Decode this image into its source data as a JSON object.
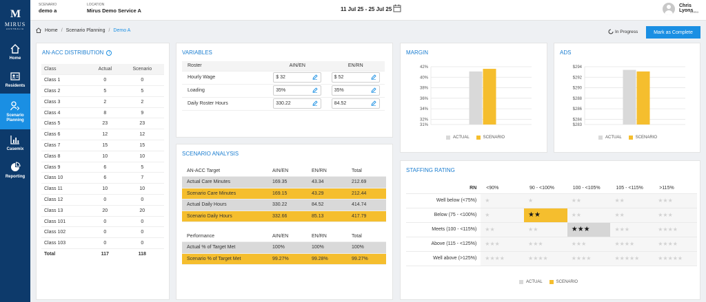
{
  "brand": {
    "mark": "M",
    "name": "MIRUS",
    "sub": "AUSTRALIA"
  },
  "nav": [
    {
      "label": "Home",
      "icon": "home-icon"
    },
    {
      "label": "Residents",
      "icon": "residents-icon"
    },
    {
      "label": "Scenario Planning",
      "icon": "scenario-planning-icon",
      "active": true
    },
    {
      "label": "Casemix",
      "icon": "casemix-icon"
    },
    {
      "label": "Reporting",
      "icon": "reporting-icon"
    }
  ],
  "topbar": {
    "scenario_label": "SCENARIO",
    "scenario_value": "demo a",
    "location_label": "LOCATION",
    "location_value": "Mirus Demo Service A",
    "date_range": "11 Jul 25 - 25 Jul 25",
    "user_name": "Chris Lyons",
    "user_role": "Demo"
  },
  "breadcrumb": {
    "home": "Home",
    "section": "Scenario Planning",
    "current": "Demo A"
  },
  "status": {
    "progress": "In Progress",
    "complete_button": "Mark as Complete"
  },
  "distribution": {
    "title": "AN-ACC DISTRIBUTION",
    "headers": [
      "Class",
      "Actual",
      "Scenario"
    ],
    "rows": [
      [
        "Class 1",
        "0",
        "0"
      ],
      [
        "Class 2",
        "5",
        "5"
      ],
      [
        "Class 3",
        "2",
        "2"
      ],
      [
        "Class 4",
        "8",
        "9"
      ],
      [
        "Class 5",
        "23",
        "23"
      ],
      [
        "Class 6",
        "12",
        "12"
      ],
      [
        "Class 7",
        "15",
        "15"
      ],
      [
        "Class 8",
        "10",
        "10"
      ],
      [
        "Class 9",
        "6",
        "5"
      ],
      [
        "Class 10",
        "6",
        "7"
      ],
      [
        "Class 11",
        "10",
        "10"
      ],
      [
        "Class 12",
        "0",
        "0"
      ],
      [
        "Class 13",
        "20",
        "20"
      ],
      [
        "Class 101",
        "0",
        "0"
      ],
      [
        "Class 102",
        "0",
        "0"
      ],
      [
        "Class 103",
        "0",
        "0"
      ]
    ],
    "total": [
      "Total",
      "117",
      "118"
    ]
  },
  "variables": {
    "title": "VARIABLES",
    "headers": [
      "Roster",
      "AIN/EN",
      "EN/RN"
    ],
    "rows": [
      {
        "label": "Hourly Wage",
        "ain": "$ 32",
        "en": "$ 52"
      },
      {
        "label": "Loading",
        "ain": "35%",
        "en": "35%"
      },
      {
        "label": "Daily Roster Hours",
        "ain": "330.22",
        "en": "84.52"
      }
    ]
  },
  "scenario_analysis": {
    "title": "SCENARIO ANALYSIS",
    "target_headers": [
      "AN-ACC Target",
      "AIN/EN",
      "EN/RN",
      "Total"
    ],
    "target_rows": [
      {
        "style": "gray",
        "cells": [
          "Actual Care Minutes",
          "169.35",
          "43.34",
          "212.69"
        ]
      },
      {
        "style": "gold",
        "cells": [
          "Scenario Care Minutes",
          "169.15",
          "43.29",
          "212.44"
        ]
      },
      {
        "style": "gray",
        "cells": [
          "Actual Daily Hours",
          "330.22",
          "84.52",
          "414.74"
        ]
      },
      {
        "style": "gold",
        "cells": [
          "Scenario Daily Hours",
          "332.66",
          "85.13",
          "417.79"
        ]
      }
    ],
    "performance_headers": [
      "Performance",
      "AIN/EN",
      "EN/RN",
      "Total"
    ],
    "performance_rows": [
      {
        "style": "gray",
        "cells": [
          "Actual % of Target Met",
          "100%",
          "100%",
          "100%"
        ]
      },
      {
        "style": "gold",
        "cells": [
          "Scenario % of Target Met",
          "99.27%",
          "99.28%",
          "99.27%"
        ]
      }
    ]
  },
  "colors": {
    "actual": "#d9d9d9",
    "scenario": "#f5be2e",
    "accent": "#1a8fe3",
    "sidebar": "#0d3a6b"
  },
  "legend": {
    "actual": "ACTUAL",
    "scenario": "SCENARIO"
  },
  "chart_data": [
    {
      "type": "bar",
      "title": "MARGIN",
      "categories": [
        ""
      ],
      "series": [
        {
          "name": "ACTUAL",
          "values": [
            41.1
          ]
        },
        {
          "name": "SCENARIO",
          "values": [
            41.6
          ]
        }
      ],
      "ylim": [
        31,
        42
      ],
      "yticks": [
        "42%",
        "40%",
        "38%",
        "36%",
        "34%",
        "32%",
        "31%"
      ],
      "ytick_values": [
        42,
        40,
        38,
        36,
        34,
        32,
        31
      ]
    },
    {
      "type": "bar",
      "title": "ADS",
      "categories": [
        ""
      ],
      "series": [
        {
          "name": "ACTUAL",
          "values": [
            293.4
          ]
        },
        {
          "name": "SCENARIO",
          "values": [
            293.1
          ]
        }
      ],
      "ylim": [
        283,
        294
      ],
      "yticks": [
        "$294",
        "$292",
        "$290",
        "$288",
        "$286",
        "$284",
        "$283"
      ],
      "ytick_values": [
        294,
        292,
        290,
        288,
        286,
        284,
        283
      ]
    }
  ],
  "staffing": {
    "title": "STAFFING RATING",
    "corner": "RN",
    "columns": [
      "<90%",
      "90 - <100%",
      "100 - <105%",
      "105 - <115%",
      ">115%"
    ],
    "rows": [
      {
        "label": "Well below (<75%)",
        "stars": [
          1,
          1,
          2,
          2,
          3
        ]
      },
      {
        "label": "Below (75 - <100%)",
        "stars": [
          1,
          2,
          2,
          2,
          3
        ]
      },
      {
        "label": "Meets (100 - <115%)",
        "stars": [
          2,
          2,
          3,
          3,
          4
        ]
      },
      {
        "label": "Above (115 - <125%)",
        "stars": [
          3,
          3,
          3,
          4,
          4
        ]
      },
      {
        "label": "Well above (>125%)",
        "stars": [
          4,
          4,
          4,
          5,
          5
        ]
      }
    ],
    "scenario_cell": [
      1,
      1
    ],
    "actual_cell": [
      2,
      2
    ]
  }
}
